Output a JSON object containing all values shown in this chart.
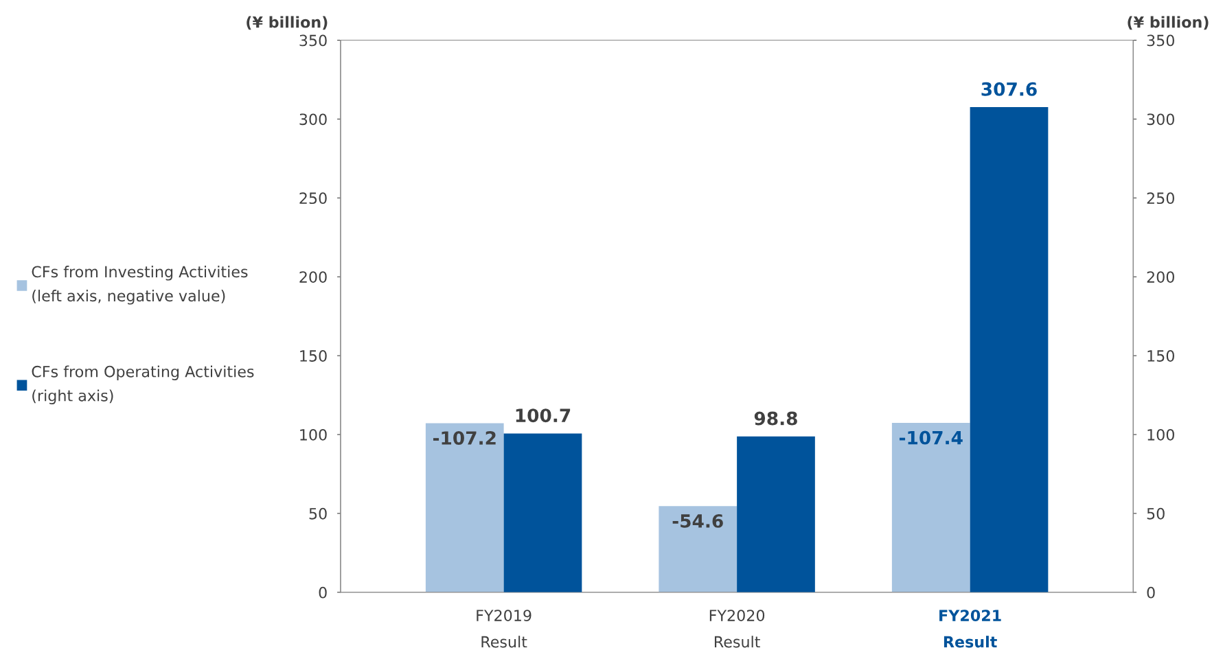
{
  "chart_data": {
    "type": "bar",
    "categories": [
      "FY2019\nResult",
      "FY2020\nResult",
      "FY2021\nResult"
    ],
    "ylabel": "(¥ billion)",
    "y2label": "(¥ billion)",
    "series": [
      {
        "name": "CFs from Investing Activities\n(left axis, negative value)",
        "color": "#a6c3e0",
        "values": [
          -107.2,
          -54.6,
          -107.4
        ],
        "value_labels": [
          "-107.2",
          "-54.6",
          "-107.4"
        ]
      },
      {
        "name": "CFs from Operating Activities\n(right axis)",
        "color": "#00539b",
        "axis": "y2",
        "values": [
          100.7,
          98.8,
          307.6
        ],
        "value_labels": [
          "100.7",
          "98.8",
          "307.6"
        ]
      }
    ],
    "ylim": [
      0,
      -350
    ],
    "yticks": [
      0,
      {
        "value": -50,
        "label": "50"
      },
      {
        "value": -100,
        "label": "100"
      },
      {
        "value": -150,
        "label": "150"
      },
      {
        "value": -200,
        "label": "200"
      },
      {
        "value": -250,
        "label": "250"
      },
      {
        "value": -300,
        "label": "300"
      },
      {
        "value": -350,
        "label": "350"
      }
    ],
    "y2lim": [
      0,
      350
    ],
    "y2ticks": [
      0,
      50,
      100,
      150,
      200,
      250,
      300,
      350
    ],
    "legend": "left",
    "grid": false
  }
}
